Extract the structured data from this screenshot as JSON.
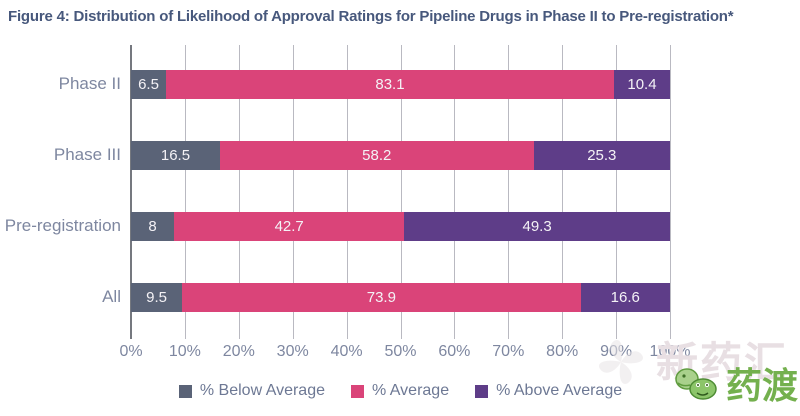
{
  "title": "Figure 4: Distribution of Likelihood of Approval Ratings for Pipeline Drugs in Phase II to Pre-registration*",
  "colors": {
    "title_text": "#47587c",
    "axis_text": "#7e87a0",
    "gridline": "#b9b9c1",
    "axis_line": "#75787f",
    "value_text": "#f4f2f6",
    "below_average": "#5a6377",
    "average": "#da4479",
    "above_average": "#5e3d88",
    "watermark_green": "#74b04e"
  },
  "chart_data": {
    "type": "bar",
    "orientation": "horizontal",
    "stacked": true,
    "grid": true,
    "legend_position": "bottom",
    "categories": [
      "Phase II",
      "Phase III",
      "Pre-registration",
      "All"
    ],
    "series": [
      {
        "name": "% Below Average",
        "color": "#5a6377",
        "values": [
          6.5,
          16.5,
          8,
          9.5
        ]
      },
      {
        "name": "% Average",
        "color": "#da4479",
        "values": [
          83.1,
          58.2,
          42.7,
          73.9
        ]
      },
      {
        "name": "% Above Average",
        "color": "#5e3d88",
        "values": [
          10.4,
          25.3,
          49.3,
          16.6
        ]
      }
    ],
    "xlim": [
      0,
      100
    ],
    "x_ticks": [
      "0%",
      "10%",
      "20%",
      "30%",
      "40%",
      "50%",
      "60%",
      "70%",
      "80%",
      "90%",
      "100%"
    ]
  },
  "watermark": {
    "faint_text": "新药汇",
    "logo_text": "药渡"
  }
}
